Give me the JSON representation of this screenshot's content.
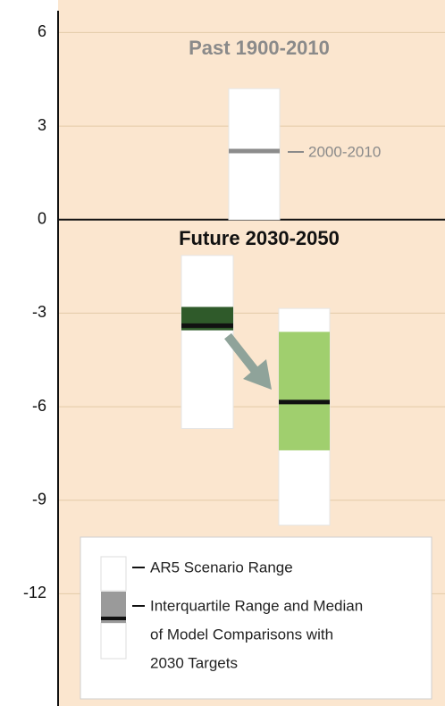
{
  "chart_data": {
    "type": "range",
    "annotations": {
      "past": "Past 1900-2010",
      "future": "Future 2030-2050",
      "median_label": "2000-2010"
    },
    "ylim": [
      -15.6,
      6.7
    ],
    "yticks": [
      6,
      3,
      0,
      -3,
      -6,
      -9,
      -12
    ],
    "grid": true,
    "boxes": [
      {
        "low": 0,
        "high": 4.2,
        "median": 2.2,
        "range_color": "#ffffff",
        "median_color": "#8c8c8c"
      },
      {
        "low": -6.7,
        "high": -1.15,
        "q1": -3.55,
        "q3": -2.8,
        "median": -3.4,
        "range_color": "#ffffff",
        "iqr_color": "#2f5a2a",
        "median_color": "#111111"
      },
      {
        "low": -9.8,
        "high": -2.85,
        "q1": -7.4,
        "q3": -3.6,
        "median": -5.85,
        "range_color": "#ffffff",
        "iqr_color": "#a0cf6e",
        "median_color": "#111111"
      }
    ],
    "legend": {
      "range": "AR5 Scenario Range",
      "iqr": [
        "Interquartile Range and Median",
        "of Model Comparisons with",
        "2030 Targets"
      ]
    }
  }
}
